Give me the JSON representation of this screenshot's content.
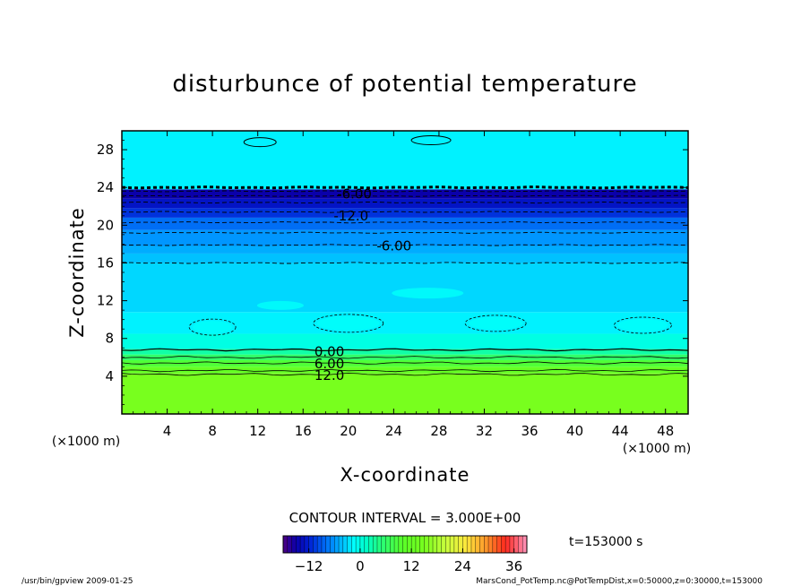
{
  "chart_data": {
    "type": "heatmap",
    "title": "disturbunce of potential temperature",
    "xlabel": "X-coordinate",
    "ylabel": "Z-coordinate",
    "x_unit_left": "(×1000 m)",
    "x_unit_right": "(×1000 m)",
    "xlim": [
      0,
      50
    ],
    "ylim": [
      0,
      30
    ],
    "x_ticks": [
      "4",
      "8",
      "12",
      "16",
      "20",
      "24",
      "28",
      "32",
      "36",
      "40",
      "44",
      "48"
    ],
    "x_tick_values": [
      4,
      8,
      12,
      16,
      20,
      24,
      28,
      32,
      36,
      40,
      44,
      48
    ],
    "y_ticks": [
      "4",
      "8",
      "12",
      "16",
      "20",
      "24",
      "28"
    ],
    "y_tick_values": [
      4,
      8,
      12,
      16,
      20,
      24,
      28
    ],
    "grid": false,
    "layers": [
      {
        "z0": 0,
        "z1": 4.3,
        "value": 15
      },
      {
        "z0": 4.3,
        "value": 12,
        "z1": 5.0
      },
      {
        "z0": 5.0,
        "z1": 5.7,
        "value": 9
      },
      {
        "z0": 5.7,
        "z1": 6.3,
        "value": 6
      },
      {
        "z0": 6.3,
        "z1": 6.9,
        "value": 3
      },
      {
        "z0": 6.9,
        "z1": 8.5,
        "value": 0
      },
      {
        "z0": 8.5,
        "z1": 10.8,
        "value": -2
      },
      {
        "z0": 10.8,
        "z1": 16.0,
        "value": -3
      },
      {
        "z0": 16.0,
        "z1": 17.0,
        "value": -4
      },
      {
        "z0": 17.0,
        "z1": 17.8,
        "value": -5
      },
      {
        "z0": 17.8,
        "z1": 19.5,
        "value": -6
      },
      {
        "z0": 19.5,
        "z1": 20.8,
        "value": -8
      },
      {
        "z0": 20.8,
        "z1": 21.8,
        "value": -11
      },
      {
        "z0": 21.8,
        "z1": 22.8,
        "value": -13
      },
      {
        "z0": 22.8,
        "z1": 23.8,
        "value": -15
      },
      {
        "z0": 23.8,
        "z1": 30,
        "value": -2
      }
    ],
    "contour_labels": [
      {
        "text": "-6.00",
        "x": 19.0,
        "z": 23.3
      },
      {
        "text": "-12.0",
        "x": 18.7,
        "z": 21.0
      },
      {
        "text": "-6.00",
        "x": 22.5,
        "z": 17.8
      },
      {
        "text": "0.00",
        "x": 17.0,
        "z": 6.6
      },
      {
        "text": "6.00",
        "x": 17.0,
        "z": 5.3
      },
      {
        "text": "12.0",
        "x": 17.0,
        "z": 4.1
      }
    ],
    "solid_contours_z": [
      6.8,
      6.0,
      5.4,
      4.6,
      4.2
    ],
    "dashed_contours_z": [
      24.0,
      23.6,
      23.1,
      22.4,
      21.4,
      20.3,
      19.2,
      17.9,
      16.0
    ],
    "contour_interval": "CONTOUR INTERVAL = 3.000E+00",
    "time_label": "t=153000  s",
    "colorbar": {
      "min": -18,
      "max": 39,
      "ticks": [
        "−12",
        "0",
        "12",
        "24",
        "36"
      ],
      "tick_values": [
        -12,
        0,
        12,
        24,
        36
      ]
    },
    "footer_left": "/usr/bin/gpview   2009-01-25",
    "footer_right": "MarsCond_PotTemp.nc@PotTempDist,x=0:50000,z=0:30000,t=153000",
    "colors": {
      "cyan_bg": "#00ffff",
      "light_blue": "#00d8ff",
      "dark_blue": "#0018c8",
      "green": "#66ff22",
      "contour": "#000000"
    }
  }
}
